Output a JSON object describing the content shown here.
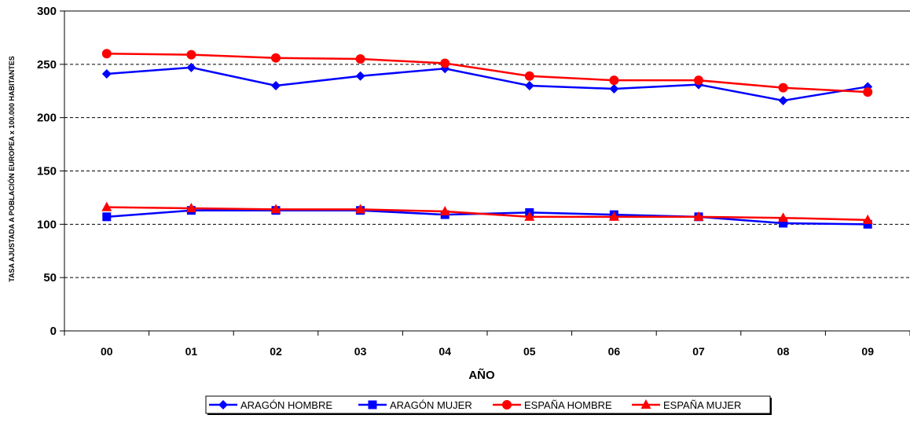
{
  "chart_data": {
    "type": "line",
    "title": "",
    "xlabel": "AÑO",
    "ylabel": "TASA AJUSTADA A POBLACIÓN EUROPEA x 100.000 HABITANTES",
    "categories": [
      "00",
      "01",
      "02",
      "03",
      "04",
      "05",
      "06",
      "07",
      "08",
      "09"
    ],
    "ylim": [
      0,
      300
    ],
    "yticks": [
      0,
      50,
      100,
      150,
      200,
      250,
      300
    ],
    "grid": "horizontal dashed",
    "legend_position": "bottom",
    "series": [
      {
        "name": "ARAGÓN HOMBRE",
        "color": "#0000ff",
        "marker": "diamond",
        "values": [
          241,
          247,
          230,
          239,
          246,
          230,
          227,
          231,
          216,
          229
        ]
      },
      {
        "name": "ARAGÓN MUJER",
        "color": "#0000ff",
        "marker": "square",
        "values": [
          107,
          113,
          113,
          113,
          109,
          111,
          109,
          107,
          101,
          100
        ]
      },
      {
        "name": "ESPAÑA HOMBRE",
        "color": "#ff0000",
        "marker": "circle",
        "values": [
          260,
          259,
          256,
          255,
          251,
          239,
          235,
          235,
          228,
          224
        ]
      },
      {
        "name": "ESPAÑA MUJER",
        "color": "#ff0000",
        "marker": "triangle",
        "values": [
          116,
          115,
          114,
          114,
          112,
          107,
          107,
          107,
          106,
          104
        ]
      }
    ]
  }
}
